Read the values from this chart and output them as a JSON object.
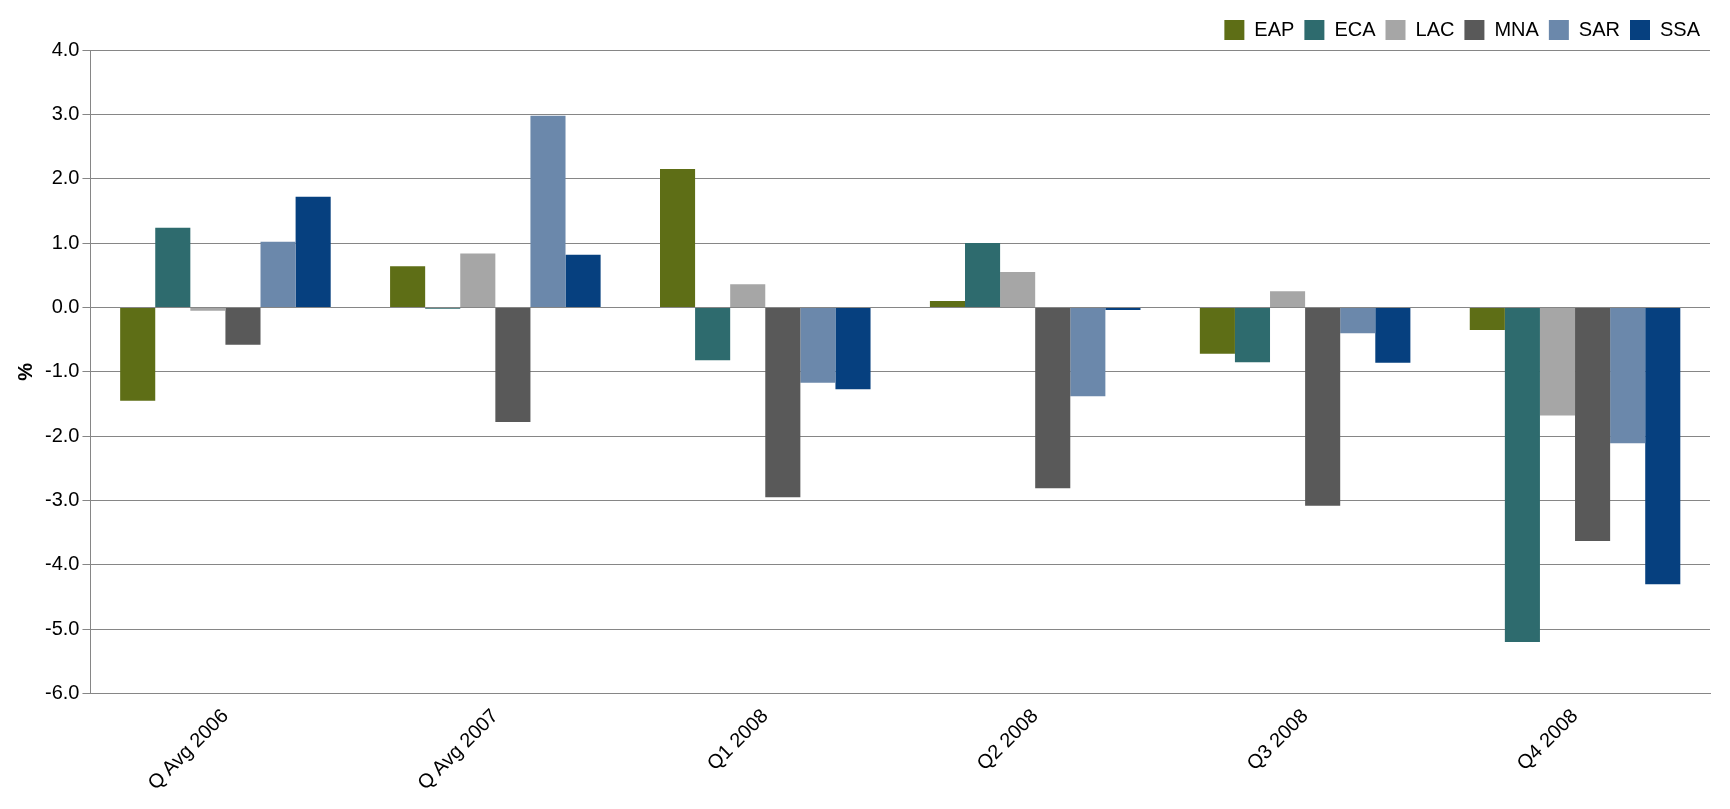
{
  "chart_data": {
    "type": "bar",
    "ylabel": "%",
    "categories": [
      "Q Avg 2006",
      "Q Avg 2007",
      "Q1 2008",
      "Q2 2008",
      "Q3 2008",
      "Q4 2008"
    ],
    "series": [
      {
        "name": "EAP",
        "color": "#5e6e16",
        "values": [
          -1.45,
          0.64,
          2.15,
          0.1,
          -0.72,
          -0.35
        ]
      },
      {
        "name": "ECA",
        "color": "#2e6b6e",
        "values": [
          1.24,
          -0.02,
          -0.82,
          1.0,
          -0.85,
          -5.2
        ]
      },
      {
        "name": "LAC",
        "color": "#a6a6a6",
        "values": [
          -0.05,
          0.84,
          0.36,
          0.55,
          0.25,
          -1.68
        ]
      },
      {
        "name": "MNA",
        "color": "#595959",
        "values": [
          -0.58,
          -1.78,
          -2.95,
          -2.81,
          -3.08,
          -3.63
        ]
      },
      {
        "name": "SAR",
        "color": "#6b88ab",
        "values": [
          1.02,
          2.98,
          -1.17,
          -1.38,
          -0.4,
          -2.11
        ]
      },
      {
        "name": "SSA",
        "color": "#06407f",
        "values": [
          1.72,
          0.82,
          -1.27,
          -0.04,
          -0.86,
          -4.3
        ]
      }
    ],
    "ylim": [
      -6.0,
      4.0
    ],
    "yticks": [
      {
        "value": -6,
        "label": "-6.0"
      },
      {
        "value": -5,
        "label": "-5.0"
      },
      {
        "value": -4,
        "label": "-4.0"
      },
      {
        "value": -3,
        "label": "-3.0"
      },
      {
        "value": -2,
        "label": "-2.0"
      },
      {
        "value": -1,
        "label": "-1.0"
      },
      {
        "value": 0,
        "label": "0.0"
      },
      {
        "value": 1,
        "label": "1.0"
      },
      {
        "value": 2,
        "label": "2.0"
      },
      {
        "value": 3,
        "label": "3.0"
      },
      {
        "value": 4,
        "label": "4.0"
      }
    ],
    "grid": "y",
    "legend": "top right"
  }
}
